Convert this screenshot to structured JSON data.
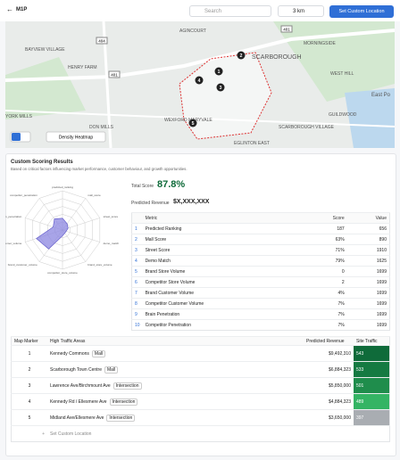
{
  "header": {
    "title": "M1P",
    "search_placeholder": "Search",
    "radius": "3 km",
    "button": "Set Custom Location"
  },
  "map": {
    "labels": [
      "AGINCOURT",
      "BAYVIEW VILLAGE",
      "HENRY FARM",
      "SCARBOROUGH",
      "MORNINGSIDE",
      "WEST HILL",
      "East Po",
      "YORK MILLS",
      "DON MILLS",
      "WEXFORD MARYVALE",
      "SCARBOROUGH VILLAGE",
      "GUILDWOOD",
      "EGLINTON EAST"
    ],
    "roads": [
      "404",
      "401",
      "401"
    ],
    "markers": [
      "1",
      "2",
      "3",
      "4",
      "5"
    ],
    "heatmap_button": "Density Heatmap"
  },
  "results": {
    "title": "Custom Scoring Results",
    "subtitle": "Based on critical factors influencing market performance, customer behaviour, and growth opportunities.",
    "total_score_label": "Total Score",
    "total_score": "87.8%",
    "revenue_label": "Predicted Revenue",
    "revenue": "$X,XXX,XXX"
  },
  "radar": {
    "type": "radar",
    "axes": [
      "predicted_ranking",
      "mall_score",
      "street_score",
      "demo_match",
      "brand_store_volume",
      "competitor_store_volume",
      "brand_customer_volume",
      "competitor_customer_volume",
      "brain_penetration",
      "competitor_penetration"
    ],
    "values": [
      30,
      20,
      15,
      10,
      10,
      15,
      60,
      70,
      25,
      35
    ],
    "rlim": [
      0,
      100
    ],
    "rticks": [
      20,
      40,
      60,
      80,
      100
    ],
    "color": "#8b85e0"
  },
  "metrics": {
    "columns": [
      "Metric",
      "Score",
      "Value"
    ],
    "rows": [
      [
        "1",
        "Predicted Ranking",
        "187",
        "656"
      ],
      [
        "2",
        "Mall Score",
        "63%",
        "890"
      ],
      [
        "3",
        "Street Score",
        "71%",
        "1910"
      ],
      [
        "4",
        "Demo Match",
        "79%",
        "1625"
      ],
      [
        "5",
        "Brand Store Volume",
        "0",
        "1699"
      ],
      [
        "6",
        "Competitor Store Volume",
        "2",
        "1699"
      ],
      [
        "7",
        "Brand Customer Volume",
        "4%",
        "1699"
      ],
      [
        "8",
        "Competitor Customer Volume",
        "7%",
        "1699"
      ],
      [
        "9",
        "Brain Penetration",
        "7%",
        "1699"
      ],
      [
        "10",
        "Competitor Penetration",
        "7%",
        "1699"
      ]
    ]
  },
  "traffic": {
    "columns": [
      "Map Marker",
      "High Traffic Areas",
      "Predicted Revenue",
      "Site Traffic"
    ],
    "rows": [
      {
        "marker": "1",
        "area": "Kennedy Commons",
        "tag": "Mall",
        "revenue": "$9,492,310",
        "traffic": "543",
        "color": "#0f6b3a"
      },
      {
        "marker": "2",
        "area": "Scarborough Town Centre",
        "tag": "Mall",
        "revenue": "$6,884,323",
        "traffic": "533",
        "color": "#157a42"
      },
      {
        "marker": "3",
        "area": "Lawrence Ave/Birchmount Ave",
        "tag": "Intersection",
        "revenue": "$5,850,000",
        "traffic": "501",
        "color": "#1f8d4c"
      },
      {
        "marker": "4",
        "area": "Kennedy Rd / Ellesmere Ave",
        "tag": "Intersection",
        "revenue": "$4,884,323",
        "traffic": "489",
        "color": "#34b464"
      },
      {
        "marker": "5",
        "area": "Midland Ave/Ellesmere Ave",
        "tag": "Intersection",
        "revenue": "$3,650,000",
        "traffic": "397",
        "color": "#a9adb2"
      }
    ],
    "add_row": "Set Custom Location"
  }
}
